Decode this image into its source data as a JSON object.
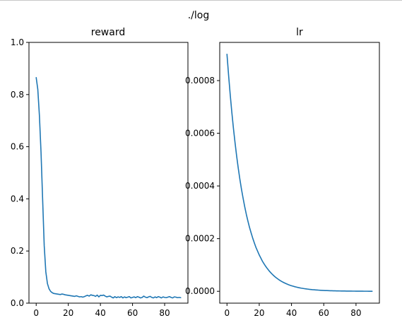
{
  "suptitle": "./log",
  "colors": {
    "line": "#1f77b4",
    "axes": "#000000",
    "top_border": "#c8c8c8"
  },
  "chart_data": [
    {
      "type": "line",
      "title": "reward",
      "xlabel": "",
      "ylabel": "",
      "xlim": [
        -4.5,
        94.5
      ],
      "ylim": [
        0,
        1.0
      ],
      "grid": false,
      "xticks": [
        0,
        20,
        40,
        60,
        80
      ],
      "xtick_labels": [
        "0",
        "20",
        "40",
        "60",
        "80"
      ],
      "yticks": [
        0,
        0.2,
        0.4,
        0.6,
        0.8,
        1.0
      ],
      "ytick_labels": [
        "0.0",
        "0.2",
        "0.4",
        "0.6",
        "0.8",
        "1.0"
      ],
      "series": [
        {
          "x": [
            0,
            1,
            2,
            3,
            4,
            5,
            6,
            7,
            8,
            9,
            10,
            11,
            12,
            13,
            14,
            15,
            16,
            17,
            18,
            19,
            20,
            21,
            22,
            23,
            24,
            25,
            26,
            27,
            28,
            29,
            30,
            31,
            32,
            33,
            34,
            35,
            36,
            37,
            38,
            39,
            40,
            41,
            42,
            43,
            44,
            45,
            46,
            47,
            48,
            49,
            50,
            51,
            52,
            53,
            54,
            55,
            56,
            57,
            58,
            59,
            60,
            61,
            62,
            63,
            64,
            65,
            66,
            67,
            68,
            69,
            70,
            71,
            72,
            73,
            74,
            75,
            76,
            77,
            78,
            79,
            80,
            81,
            82,
            83,
            84,
            85,
            86,
            87,
            88,
            89,
            90
          ],
          "y": [
            0.865,
            0.82,
            0.72,
            0.58,
            0.4,
            0.22,
            0.12,
            0.075,
            0.055,
            0.045,
            0.04,
            0.037,
            0.036,
            0.035,
            0.034,
            0.033,
            0.035,
            0.034,
            0.032,
            0.031,
            0.03,
            0.029,
            0.028,
            0.027,
            0.026,
            0.028,
            0.026,
            0.024,
            0.025,
            0.023,
            0.025,
            0.028,
            0.03,
            0.027,
            0.032,
            0.03,
            0.029,
            0.026,
            0.031,
            0.024,
            0.03,
            0.029,
            0.031,
            0.027,
            0.024,
            0.026,
            0.027,
            0.023,
            0.02,
            0.025,
            0.021,
            0.024,
            0.022,
            0.025,
            0.02,
            0.024,
            0.021,
            0.023,
            0.025,
            0.02,
            0.022,
            0.024,
            0.021,
            0.025,
            0.023,
            0.02,
            0.022,
            0.027,
            0.023,
            0.021,
            0.024,
            0.026,
            0.022,
            0.02,
            0.024,
            0.021,
            0.025,
            0.023,
            0.02,
            0.024,
            0.022,
            0.021,
            0.023,
            0.025,
            0.022,
            0.02,
            0.024,
            0.023,
            0.021,
            0.022,
            0.021
          ]
        }
      ]
    },
    {
      "type": "line",
      "title": "lr",
      "xlabel": "",
      "ylabel": "",
      "xlim": [
        -4.5,
        94.5
      ],
      "ylim": [
        -4.5e-05,
        0.000945
      ],
      "grid": false,
      "xticks": [
        0,
        20,
        40,
        60,
        80
      ],
      "xtick_labels": [
        "0",
        "20",
        "40",
        "60",
        "80"
      ],
      "yticks": [
        0,
        0.0002,
        0.0004,
        0.0006,
        0.0008
      ],
      "ytick_labels": [
        "0.0000",
        "0.0002",
        "0.0004",
        "0.0006",
        "0.0008"
      ],
      "series": [
        {
          "x": [
            0,
            1,
            2,
            3,
            4,
            5,
            6,
            7,
            8,
            9,
            10,
            11,
            12,
            13,
            14,
            15,
            16,
            17,
            18,
            19,
            20,
            21,
            22,
            23,
            24,
            25,
            26,
            27,
            28,
            29,
            30,
            31,
            32,
            33,
            34,
            35,
            36,
            37,
            38,
            39,
            40,
            41,
            42,
            43,
            44,
            45,
            46,
            47,
            48,
            49,
            50,
            51,
            52,
            53,
            54,
            55,
            56,
            57,
            58,
            59,
            60,
            61,
            62,
            63,
            64,
            65,
            66,
            67,
            68,
            69,
            70,
            71,
            72,
            73,
            74,
            75,
            76,
            77,
            78,
            79,
            80,
            81,
            82,
            83,
            84,
            85,
            86,
            87,
            88,
            89,
            90
          ],
          "y": [
            0.0009,
            0.00082,
            0.000747,
            0.00068,
            0.000619,
            0.000564,
            0.000513,
            0.000467,
            0.000425,
            0.000387,
            0.000353,
            0.000321,
            0.000292,
            0.000266,
            0.000242,
            0.000221,
            0.000201,
            0.000183,
            0.000166,
            0.000152,
            0.000138,
            0.000126,
            0.000114,
            0.000104,
            9.48e-05,
            8.63e-05,
            7.86e-05,
            7.15e-05,
            6.51e-05,
            5.93e-05,
            5.4e-05,
            4.92e-05,
            4.48e-05,
            4.08e-05,
            3.71e-05,
            3.38e-05,
            3.08e-05,
            2.8e-05,
            2.55e-05,
            2.32e-05,
            2.12e-05,
            1.93e-05,
            1.75e-05,
            1.6e-05,
            1.45e-05,
            1.32e-05,
            1.2e-05,
            1.1e-05,
            1e-05,
            9.1e-06,
            8.3e-06,
            7.5e-06,
            6.9e-06,
            6.2e-06,
            5.7e-06,
            5.2e-06,
            4.7e-06,
            4.3e-06,
            3.9e-06,
            3.6e-06,
            3.2e-06,
            2.9e-06,
            2.7e-06,
            2.4e-06,
            2.2e-06,
            2e-06,
            1.8e-06,
            1.7e-06,
            1.5e-06,
            1.4e-06,
            1.3e-06,
            1.2e-06,
            1.1e-06,
            1e-06,
            9e-07,
            8e-07,
            7e-07,
            7e-07,
            6e-07,
            6e-07,
            5e-07,
            5e-07,
            4e-07,
            4e-07,
            4e-07,
            3e-07,
            3e-07,
            3e-07,
            2e-07,
            2e-07,
            2e-07
          ]
        }
      ]
    }
  ]
}
